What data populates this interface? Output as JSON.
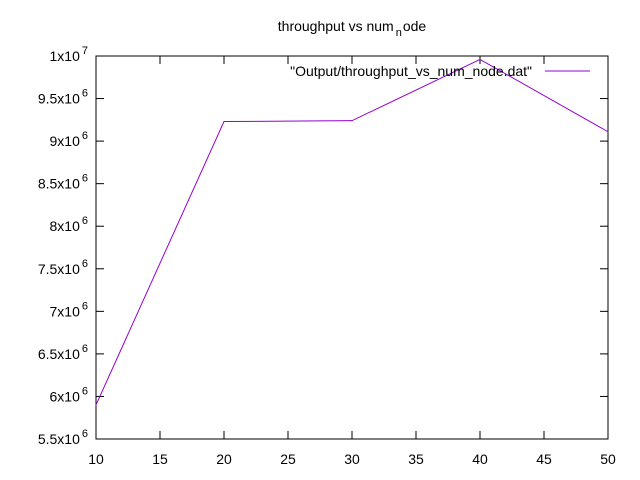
{
  "chart_data": {
    "type": "line",
    "title": {
      "main": "throughput vs num",
      "subscript": "n",
      "rest": "ode"
    },
    "xlabel": "",
    "ylabel": "",
    "xlim": [
      10,
      50
    ],
    "ylim": [
      5500000,
      10000000
    ],
    "x_ticks": [
      10,
      15,
      20,
      25,
      30,
      35,
      40,
      45,
      50
    ],
    "y_ticks": [
      {
        "value": 5500000,
        "mantissa": "5.5x10",
        "exponent": "6"
      },
      {
        "value": 6000000,
        "mantissa": "6x10",
        "exponent": "6"
      },
      {
        "value": 6500000,
        "mantissa": "6.5x10",
        "exponent": "6"
      },
      {
        "value": 7000000,
        "mantissa": "7x10",
        "exponent": "6"
      },
      {
        "value": 7500000,
        "mantissa": "7.5x10",
        "exponent": "6"
      },
      {
        "value": 8000000,
        "mantissa": "8x10",
        "exponent": "6"
      },
      {
        "value": 8500000,
        "mantissa": "8.5x10",
        "exponent": "6"
      },
      {
        "value": 9000000,
        "mantissa": "9x10",
        "exponent": "6"
      },
      {
        "value": 9500000,
        "mantissa": "9.5x10",
        "exponent": "6"
      },
      {
        "value": 10000000,
        "mantissa": "1x10",
        "exponent": "7"
      }
    ],
    "grid": false,
    "legend_position": "top-right",
    "series": [
      {
        "name": "\"Output/throughput_vs_num_node.dat\"",
        "color": "#9400d3",
        "x": [
          10,
          20,
          30,
          40,
          50
        ],
        "y": [
          5900000,
          9230000,
          9240000,
          9960000,
          9110000
        ]
      }
    ]
  }
}
